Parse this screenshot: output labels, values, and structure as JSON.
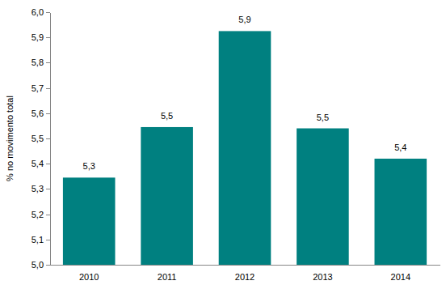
{
  "chart_data": {
    "type": "bar",
    "ylabel": "% no movimento total",
    "categories": [
      "2010",
      "2011",
      "2012",
      "2013",
      "2014"
    ],
    "values": [
      5.345,
      5.545,
      5.925,
      5.54,
      5.42
    ],
    "value_labels": [
      "5,3",
      "5,5",
      "5,9",
      "5,5",
      "5,4"
    ],
    "data_labels": true,
    "color": "#008080",
    "grid": false,
    "ylim": [
      5.0,
      6.0
    ],
    "yticks": [
      {
        "value": 5.0,
        "label": "5,0"
      },
      {
        "value": 5.1,
        "label": "5,1"
      },
      {
        "value": 5.2,
        "label": "5,2"
      },
      {
        "value": 5.3,
        "label": "5,3"
      },
      {
        "value": 5.4,
        "label": "5,4"
      },
      {
        "value": 5.5,
        "label": "5,5"
      },
      {
        "value": 5.6,
        "label": "5,6"
      },
      {
        "value": 5.7,
        "label": "5,7"
      },
      {
        "value": 5.8,
        "label": "5,8"
      },
      {
        "value": 5.9,
        "label": "5,9"
      },
      {
        "value": 6.0,
        "label": "6,0"
      }
    ]
  }
}
